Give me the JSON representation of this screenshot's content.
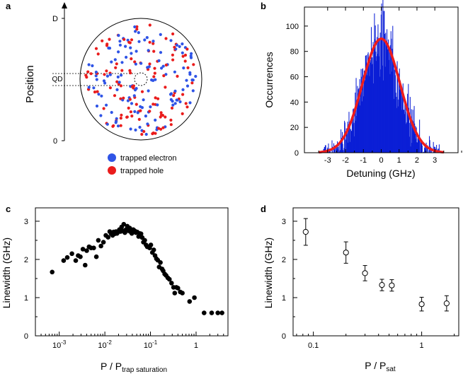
{
  "colors": {
    "electron": "#2f54e6",
    "hole": "#ea1c1c",
    "histogram": "#0b1fd6",
    "fit": "#ee1c1c",
    "axis": "#000000"
  },
  "panel_a": {
    "label": "a",
    "ylabel": "Position",
    "tick_top": "D",
    "tick_mid": "QD",
    "tick_bottom": "0",
    "legend": [
      {
        "text": "trapped electron",
        "color_key": "electron"
      },
      {
        "text": "trapped hole",
        "color_key": "hole"
      }
    ]
  },
  "chart_data": [
    {
      "id": "b",
      "label": "b",
      "type": "bar",
      "title": "",
      "xlabel": "Detuning (GHz)",
      "ylabel": "Occurrences",
      "xlim": [
        -4.3,
        4.3
      ],
      "ylim": [
        0,
        115
      ],
      "xticks": [
        -3,
        -2,
        -1,
        0,
        1,
        2,
        3
      ],
      "yticks": [
        0,
        20,
        40,
        60,
        80,
        100
      ],
      "histogram": {
        "center": 0.0,
        "sigma": 1.05,
        "peak": 90,
        "range": [
          -3.3,
          3.3
        ],
        "bin_width": 0.025
      },
      "fit": {
        "type": "gaussian",
        "amplitude": 90,
        "center": 0.0,
        "sigma": 1.05,
        "range": [
          -3.5,
          3.5
        ]
      }
    },
    {
      "id": "c",
      "label": "c",
      "type": "scatter",
      "xscale": "log",
      "xlabel_main": "P / P",
      "xlabel_sub": "trap saturation",
      "ylabel": "Linewidth (GHz)",
      "xlim": [
        0.0003,
        5
      ],
      "ylim": [
        0,
        3.35
      ],
      "xticks": [
        {
          "value": 0.001,
          "base": "10",
          "exp": "-3"
        },
        {
          "value": 0.01,
          "base": "10",
          "exp": "-2"
        },
        {
          "value": 0.1,
          "base": "10",
          "exp": "-1"
        },
        {
          "value": 1,
          "base": "1",
          "exp": ""
        }
      ],
      "yticks": [
        0,
        1,
        2,
        3
      ],
      "points": [
        [
          0.0007,
          1.67
        ],
        [
          0.00125,
          1.97
        ],
        [
          0.0015,
          2.05
        ],
        [
          0.0019,
          2.15
        ],
        [
          0.0023,
          1.97
        ],
        [
          0.0026,
          2.1
        ],
        [
          0.0029,
          2.07
        ],
        [
          0.0033,
          2.27
        ],
        [
          0.0037,
          1.85
        ],
        [
          0.004,
          2.23
        ],
        [
          0.0045,
          2.33
        ],
        [
          0.005,
          2.3
        ],
        [
          0.0057,
          2.3
        ],
        [
          0.0065,
          2.07
        ],
        [
          0.0072,
          2.5
        ],
        [
          0.0082,
          2.35
        ],
        [
          0.0093,
          2.45
        ],
        [
          0.0105,
          2.63
        ],
        [
          0.0118,
          2.58
        ],
        [
          0.0128,
          2.73
        ],
        [
          0.0138,
          2.67
        ],
        [
          0.0148,
          2.63
        ],
        [
          0.0156,
          2.72
        ],
        [
          0.0165,
          2.67
        ],
        [
          0.0175,
          2.73
        ],
        [
          0.0185,
          2.68
        ],
        [
          0.0196,
          2.72
        ],
        [
          0.0208,
          2.78
        ],
        [
          0.022,
          2.73
        ],
        [
          0.0233,
          2.85
        ],
        [
          0.0247,
          2.75
        ],
        [
          0.026,
          2.92
        ],
        [
          0.0275,
          2.7
        ],
        [
          0.029,
          2.78
        ],
        [
          0.031,
          2.87
        ],
        [
          0.033,
          2.75
        ],
        [
          0.035,
          2.82
        ],
        [
          0.037,
          2.72
        ],
        [
          0.039,
          2.68
        ],
        [
          0.042,
          2.78
        ],
        [
          0.045,
          2.75
        ],
        [
          0.048,
          2.7
        ],
        [
          0.051,
          2.72
        ],
        [
          0.055,
          2.6
        ],
        [
          0.058,
          2.68
        ],
        [
          0.062,
          2.67
        ],
        [
          0.066,
          2.57
        ],
        [
          0.07,
          2.45
        ],
        [
          0.075,
          2.5
        ],
        [
          0.08,
          2.38
        ],
        [
          0.085,
          2.33
        ],
        [
          0.09,
          2.33
        ],
        [
          0.096,
          2.3
        ],
        [
          0.102,
          2.38
        ],
        [
          0.11,
          2.18
        ],
        [
          0.118,
          2.25
        ],
        [
          0.126,
          2.1
        ],
        [
          0.135,
          2.02
        ],
        [
          0.145,
          1.98
        ],
        [
          0.155,
          1.8
        ],
        [
          0.165,
          1.92
        ],
        [
          0.18,
          1.75
        ],
        [
          0.19,
          1.7
        ],
        [
          0.205,
          1.62
        ],
        [
          0.22,
          1.58
        ],
        [
          0.24,
          1.52
        ],
        [
          0.26,
          1.48
        ],
        [
          0.29,
          1.38
        ],
        [
          0.32,
          1.27
        ],
        [
          0.34,
          1.12
        ],
        [
          0.37,
          1.27
        ],
        [
          0.4,
          1.25
        ],
        [
          0.45,
          1.15
        ],
        [
          0.5,
          1.12
        ],
        [
          0.72,
          0.9
        ],
        [
          0.92,
          1.0
        ],
        [
          1.5,
          0.6
        ],
        [
          2.2,
          0.6
        ],
        [
          3.0,
          0.6
        ],
        [
          3.7,
          0.6
        ]
      ]
    },
    {
      "id": "d",
      "label": "d",
      "type": "scatter",
      "xscale": "log",
      "xlabel_main": "P / P",
      "xlabel_sub": "sat",
      "ylabel": "Linewidth (GHz)",
      "xlim": [
        0.065,
        2.2
      ],
      "ylim": [
        0,
        3.35
      ],
      "xticks": [
        {
          "value": 0.1,
          "label": "0.1"
        },
        {
          "value": 1,
          "label": "1"
        }
      ],
      "yticks": [
        0,
        1,
        2,
        3
      ],
      "points": [
        {
          "x": 0.085,
          "y": 2.72,
          "err": 0.35
        },
        {
          "x": 0.2,
          "y": 2.18,
          "err": 0.28
        },
        {
          "x": 0.3,
          "y": 1.64,
          "err": 0.2
        },
        {
          "x": 0.43,
          "y": 1.33,
          "err": 0.15
        },
        {
          "x": 0.53,
          "y": 1.32,
          "err": 0.15
        },
        {
          "x": 1.0,
          "y": 0.83,
          "err": 0.18
        },
        {
          "x": 1.7,
          "y": 0.85,
          "err": 0.2
        }
      ]
    }
  ]
}
